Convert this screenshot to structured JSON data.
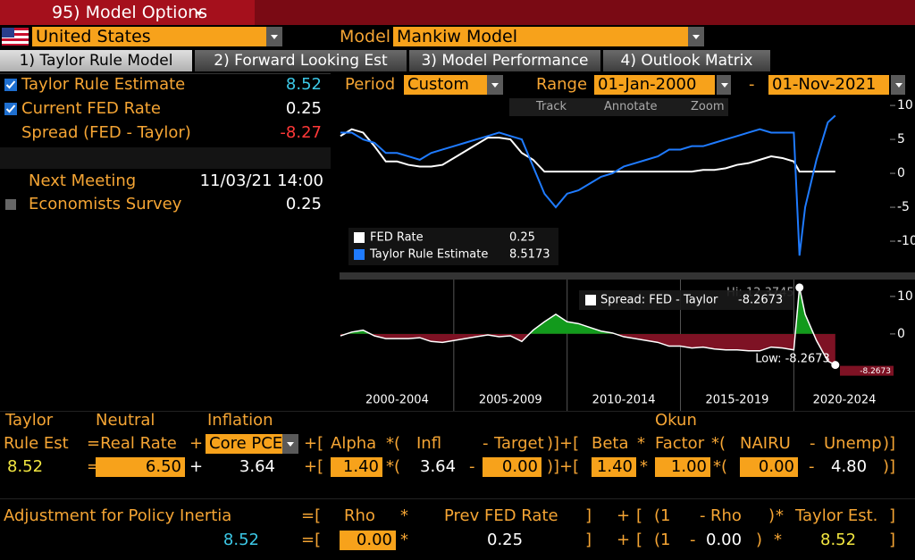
{
  "header": {
    "menu": "95) Model Options"
  },
  "selection": {
    "country": "United States",
    "model_label": "Model",
    "model": "Mankiw Model"
  },
  "tabs": [
    "1) Taylor Rule Model",
    "2) Forward Looking Est",
    "3) Model Performance",
    "4) Outlook Matrix"
  ],
  "summary": [
    {
      "label": "Taylor Rule Estimate",
      "value": "8.52"
    },
    {
      "label": "Current FED Rate",
      "value": "0.25"
    },
    {
      "label": "Spread (FED - Taylor)",
      "value": "-8.27"
    }
  ],
  "meeting": {
    "label": "Next Meeting",
    "value": "11/03/21 14:00"
  },
  "survey": {
    "label": "Economists Survey",
    "value": "0.25"
  },
  "controls": {
    "period_label": "Period",
    "period": "Custom",
    "range_label": "Range",
    "start": "01-Jan-2000",
    "separator": "-",
    "end": "01-Nov-2021"
  },
  "toolbar": [
    "Track",
    "Annotate",
    "Zoom"
  ],
  "chart_data": [
    {
      "type": "line",
      "x": [
        2000,
        2000.5,
        2001,
        2001.5,
        2002,
        2002.5,
        2003,
        2003.5,
        2004,
        2004.5,
        2005,
        2005.5,
        2006,
        2006.5,
        2007,
        2007.5,
        2008,
        2008.5,
        2009,
        2009.5,
        2010,
        2010.5,
        2011,
        2011.5,
        2012,
        2012.5,
        2013,
        2013.5,
        2014,
        2014.5,
        2015,
        2015.5,
        2016,
        2016.5,
        2017,
        2017.5,
        2018,
        2018.5,
        2019,
        2019.5,
        2020,
        2020.25,
        2020.5,
        2021,
        2021.5,
        2021.83
      ],
      "xlim": [
        2000,
        2024.4
      ],
      "ylim": [
        -14.6,
        10.8
      ],
      "yticks": [
        -10,
        -5,
        0,
        5,
        10
      ],
      "legend": "lower left",
      "series": [
        {
          "name": "FED Rate",
          "color": "#ffffff",
          "legend_value": "0.25",
          "values": [
            5.5,
            6.5,
            6,
            4,
            1.75,
            1.75,
            1.25,
            1,
            1,
            1.25,
            2.25,
            3.25,
            4.25,
            5.25,
            5.25,
            5,
            3,
            2,
            0.25,
            0.25,
            0.25,
            0.25,
            0.25,
            0.25,
            0.25,
            0.25,
            0.25,
            0.25,
            0.25,
            0.25,
            0.25,
            0.25,
            0.5,
            0.5,
            0.75,
            1.25,
            1.5,
            2,
            2.5,
            2.25,
            1.75,
            0.25,
            0.25,
            0.25,
            0.25,
            0.25
          ]
        },
        {
          "name": "Taylor Rule Estimate",
          "color": "#1f7bff",
          "legend_value": "8.5173",
          "values": [
            6,
            6,
            5,
            4.5,
            3,
            3,
            2.5,
            2,
            3,
            3.5,
            4,
            4.5,
            5,
            5.5,
            6,
            5.5,
            5,
            1,
            -3,
            -5,
            -3,
            -2.5,
            -1.5,
            -0.5,
            0,
            1,
            1.5,
            2,
            2.5,
            3.5,
            3.5,
            4,
            4,
            4.5,
            5,
            5.5,
            6,
            6.5,
            6,
            6,
            6,
            -12.1245,
            -5,
            2,
            7.5,
            8.5173
          ]
        }
      ]
    },
    {
      "type": "area",
      "x": [
        2000,
        2000.5,
        2001,
        2001.5,
        2002,
        2002.5,
        2003,
        2003.5,
        2004,
        2004.5,
        2005,
        2005.5,
        2006,
        2006.5,
        2007,
        2007.5,
        2008,
        2008.5,
        2009,
        2009.5,
        2010,
        2010.5,
        2011,
        2011.5,
        2012,
        2012.5,
        2013,
        2013.5,
        2014,
        2014.5,
        2015,
        2015.5,
        2016,
        2016.5,
        2017,
        2017.5,
        2018,
        2018.5,
        2019,
        2019.5,
        2020,
        2020.25,
        2020.5,
        2021,
        2021.5,
        2021.83
      ],
      "xlim": [
        2000,
        2024.4
      ],
      "xticks": [
        {
          "value": 2002.5,
          "label": "2000-2004"
        },
        {
          "value": 2007.5,
          "label": "2005-2009"
        },
        {
          "value": 2012.5,
          "label": "2010-2014"
        },
        {
          "value": 2017.5,
          "label": "2015-2019"
        },
        {
          "value": 2022.5,
          "label": "2020-2024"
        }
      ],
      "ylim": [
        -10.5,
        14.5
      ],
      "yticks": [
        0,
        10
      ],
      "positive_color": "#129a1c",
      "negative_color": "#7e1224",
      "series": [
        {
          "name": "Spread: FED - Taylor",
          "color": "#ffffff",
          "legend_value": "-8.2673",
          "values": [
            -0.5,
            0.5,
            1,
            -0.5,
            -1.25,
            -1.25,
            -1.25,
            -1,
            -2,
            -2.25,
            -1.75,
            -1.25,
            -0.75,
            -0.25,
            -0.75,
            -0.5,
            -2,
            1,
            3.25,
            5.25,
            3.25,
            2.75,
            1.75,
            0.75,
            0.25,
            -0.75,
            -1.25,
            -1.75,
            -2.25,
            -3.25,
            -3.25,
            -3.75,
            -3.5,
            -4,
            -4.25,
            -4.25,
            -4.5,
            -4.5,
            -3.5,
            -3.75,
            -4.25,
            12.3745,
            5.25,
            -1.75,
            -7.25,
            -8.2673
          ]
        }
      ],
      "annotations": {
        "high": "Hi: 12.3745",
        "low": "Low: -8.2673",
        "last": "-8.2673"
      }
    }
  ],
  "formula": {
    "rows": [
      [
        "Taylor",
        "Neutral",
        "Inflation",
        "Okun"
      ],
      [
        "Rule Est",
        "=Real Rate",
        "+",
        "Core PCE",
        "+[",
        "Alpha",
        "*(",
        "Infl",
        "-",
        "Target",
        ")]+[",
        "Beta",
        "*",
        "Factor",
        "*(",
        "NAIRU",
        "-",
        "Unemp",
        ")]"
      ],
      [
        "8.52",
        "=",
        "6.50",
        "+",
        "3.64",
        "+[",
        "1.40",
        "*(",
        "3.64",
        "-",
        "0.00",
        ")]+[",
        "1.40",
        "*",
        "1.00",
        "*(",
        "0.00",
        "-",
        "4.80",
        ")]"
      ]
    ]
  },
  "inertia": {
    "rows": [
      [
        "Adjustment for Policy Inertia",
        "=[",
        "Rho",
        "*",
        "Prev FED Rate",
        "]",
        "+",
        "[",
        "(1",
        "-",
        "Rho",
        ")",
        "*",
        "Taylor Est.",
        "]"
      ],
      [
        "8.52",
        "=[",
        "0.00",
        "*",
        "0.25",
        "]",
        "+",
        "[",
        "(1",
        "-",
        "0.00",
        ")",
        "*",
        "8.52",
        "]"
      ]
    ]
  }
}
